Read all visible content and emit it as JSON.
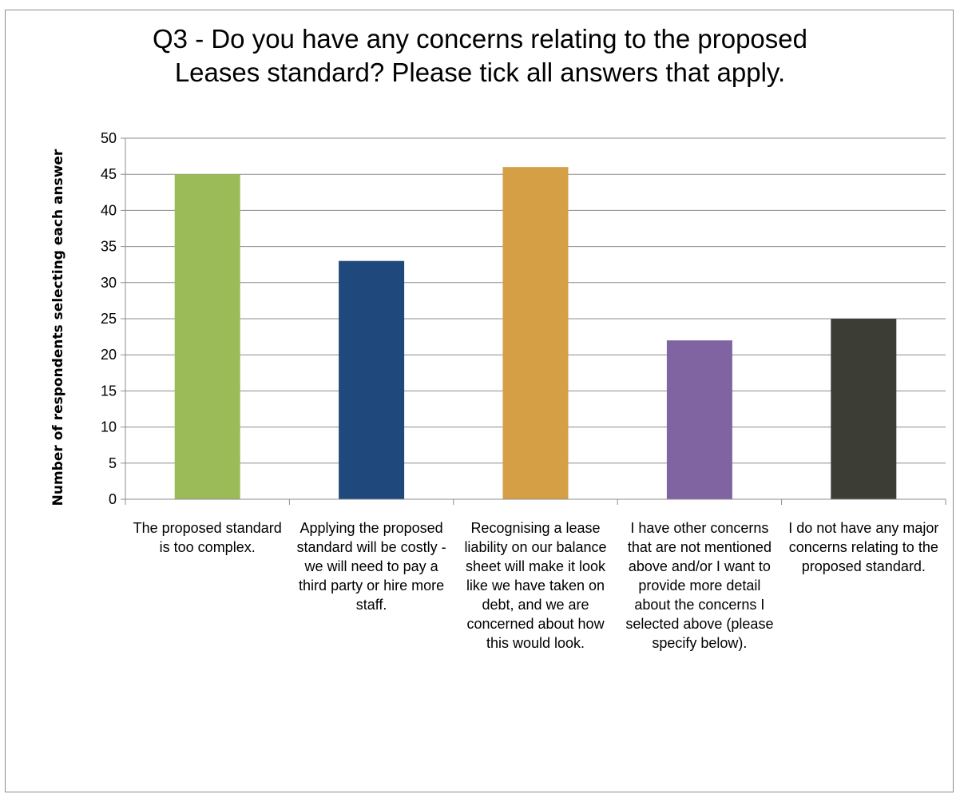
{
  "chart_data": {
    "type": "bar",
    "title_lines": [
      "Q3 - Do you have any concerns relating to the proposed",
      "Leases standard? Please tick all answers that apply."
    ],
    "xlabel": "",
    "ylabel": "Number of respondents selecting each answer",
    "ylim": [
      0,
      50
    ],
    "yticks": [
      0,
      5,
      10,
      15,
      20,
      25,
      30,
      35,
      40,
      45,
      50
    ],
    "grid": true,
    "categories": [
      "The proposed standard is too complex.",
      "Applying the proposed standard will be costly - we will need to pay a third party or hire more staff.",
      "Recognising a lease liability on our balance sheet will make it look like we have taken on debt, and we are concerned about how this would look.",
      "I have other concerns that are not mentioned above and/or I want to provide more detail about the concerns I selected above (please specify below).",
      "I do not have any major concerns relating to the proposed standard."
    ],
    "values": [
      45,
      33,
      46,
      22,
      25
    ],
    "colors": [
      "#9bbb59",
      "#1f497d",
      "#d49f45",
      "#8064a2",
      "#3c3d34"
    ]
  }
}
